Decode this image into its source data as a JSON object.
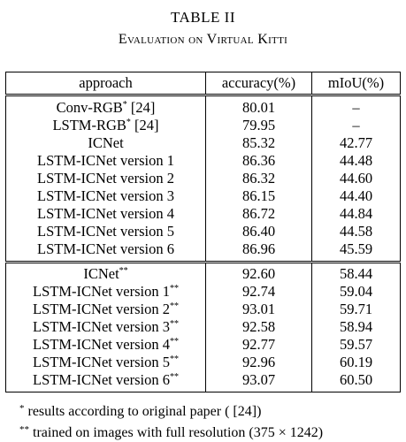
{
  "table_label": "TABLE II",
  "caption": "Evaluation on Virtual Kitti",
  "columns": [
    "approach",
    "accuracy(%)",
    "mIoU(%)"
  ],
  "rows": [
    {
      "approach": "Conv-RGB",
      "mark": "*",
      "suffix": " [24]",
      "accuracy": "80.01",
      "miou": "–",
      "bold": false
    },
    {
      "approach": "LSTM-RGB",
      "mark": "*",
      "suffix": " [24]",
      "accuracy": "79.95",
      "miou": "–",
      "bold": false
    },
    {
      "approach": "ICNet",
      "mark": "",
      "suffix": "",
      "accuracy": "85.32",
      "miou": "42.77",
      "bold": false
    },
    {
      "approach": "LSTM-ICNet version 1",
      "mark": "",
      "suffix": "",
      "accuracy": "86.36",
      "miou": "44.48",
      "bold": false
    },
    {
      "approach": "LSTM-ICNet version 2",
      "mark": "",
      "suffix": "",
      "accuracy": "86.32",
      "miou": "44.60",
      "bold": false
    },
    {
      "approach": "LSTM-ICNet version 3",
      "mark": "",
      "suffix": "",
      "accuracy": "86.15",
      "miou": "44.40",
      "bold": false
    },
    {
      "approach": "LSTM-ICNet version 4",
      "mark": "",
      "suffix": "",
      "accuracy": "86.72",
      "miou": "44.84",
      "bold": false
    },
    {
      "approach": "LSTM-ICNet version 5",
      "mark": "",
      "suffix": "",
      "accuracy": "86.40",
      "miou": "44.58",
      "bold": false
    },
    {
      "approach": "LSTM-ICNet version 6",
      "mark": "",
      "suffix": "",
      "accuracy": "86.96",
      "miou": "45.59",
      "bold": true
    },
    {
      "approach": "ICNet",
      "mark": "**",
      "suffix": "",
      "accuracy": "92.60",
      "miou": "58.44",
      "bold": false
    },
    {
      "approach": "LSTM-ICNet version 1",
      "mark": "**",
      "suffix": "",
      "accuracy": "92.74",
      "miou": "59.04",
      "bold": false
    },
    {
      "approach": "LSTM-ICNet version 2",
      "mark": "**",
      "suffix": "",
      "accuracy": "93.01",
      "miou": "59.71",
      "bold": false
    },
    {
      "approach": "LSTM-ICNet version 3",
      "mark": "**",
      "suffix": "",
      "accuracy": "92.58",
      "miou": "58.94",
      "bold": false
    },
    {
      "approach": "LSTM-ICNet version 4",
      "mark": "**",
      "suffix": "",
      "accuracy": "92.77",
      "miou": "59.57",
      "bold": false
    },
    {
      "approach": "LSTM-ICNet version 5",
      "mark": "**",
      "suffix": "",
      "accuracy": "92.96",
      "miou": "60.19",
      "bold": false
    },
    {
      "approach": "LSTM-ICNet version 6",
      "mark": "**",
      "suffix": "",
      "accuracy": "93.07",
      "miou": "60.50",
      "bold": true
    }
  ],
  "footnotes": [
    {
      "mark": "*",
      "text": "results according to original paper ( [24])"
    },
    {
      "mark": "**",
      "text": "trained on images with full resolution (375 × 1242)"
    }
  ]
}
